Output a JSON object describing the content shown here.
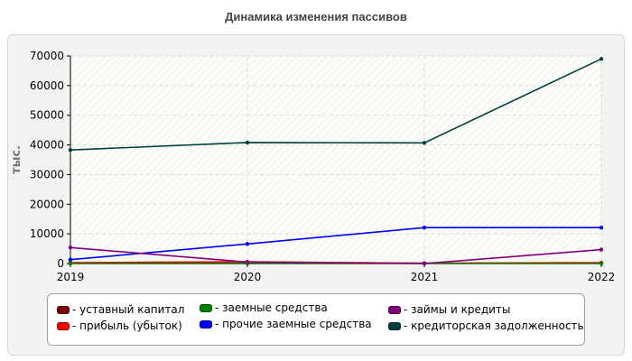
{
  "chart_data": {
    "type": "line",
    "title": "Динамика изменения пассивов",
    "ylabel": "тыс.",
    "xlabel": "",
    "categories": [
      "2019",
      "2020",
      "2021",
      "2022"
    ],
    "ylim": [
      0,
      70000
    ],
    "yticks": [
      0,
      10000,
      20000,
      30000,
      40000,
      50000,
      60000,
      70000
    ],
    "series": [
      {
        "name": "уставный капитал",
        "color": "#800000",
        "values": [
          100,
          100,
          100,
          100
        ]
      },
      {
        "name": "прибыль (убыток)",
        "color": "#ff0000",
        "values": [
          300,
          600,
          100,
          300
        ]
      },
      {
        "name": "заемные средства",
        "color": "#008000",
        "values": [
          0,
          0,
          0,
          0
        ]
      },
      {
        "name": "прочие заемные средства",
        "color": "#0000ff",
        "values": [
          1300,
          6600,
          12100,
          12100
        ]
      },
      {
        "name": "займы и кредиты",
        "color": "#800080",
        "values": [
          5400,
          500,
          0,
          4700
        ]
      },
      {
        "name": "кредиторская задолженность",
        "color": "#004040",
        "values": [
          38300,
          40800,
          40700,
          69000
        ]
      }
    ],
    "legend_position": "bottom"
  }
}
